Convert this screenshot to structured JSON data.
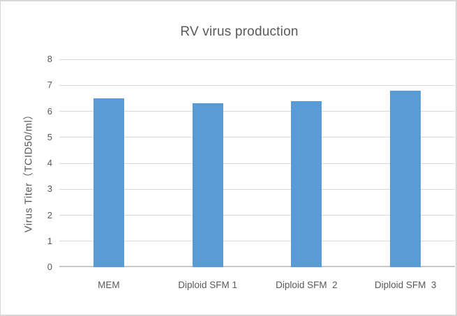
{
  "chart_data": {
    "type": "bar",
    "title": "RV virus production",
    "categories": [
      "MEM",
      "Diploid SFM 1",
      "Diploid SFM  2",
      "Diploid SFM  3"
    ],
    "values": [
      6.5,
      6.3,
      6.4,
      6.8
    ],
    "xlabel": "",
    "ylabel": "Virus Titer（TCID50/ml）",
    "ylim": [
      0,
      8
    ],
    "ytick_step": 1,
    "yticks": [
      0,
      1,
      2,
      3,
      4,
      5,
      6,
      7,
      8
    ],
    "grid": true,
    "legend": false,
    "colors": {
      "bar": "#5B9BD5",
      "gridline": "#D9D9D9",
      "axis_line": "#C9C9C9",
      "text": "#595959",
      "background": "#FFFFFF",
      "frame_border": "#D8D8D8"
    }
  }
}
